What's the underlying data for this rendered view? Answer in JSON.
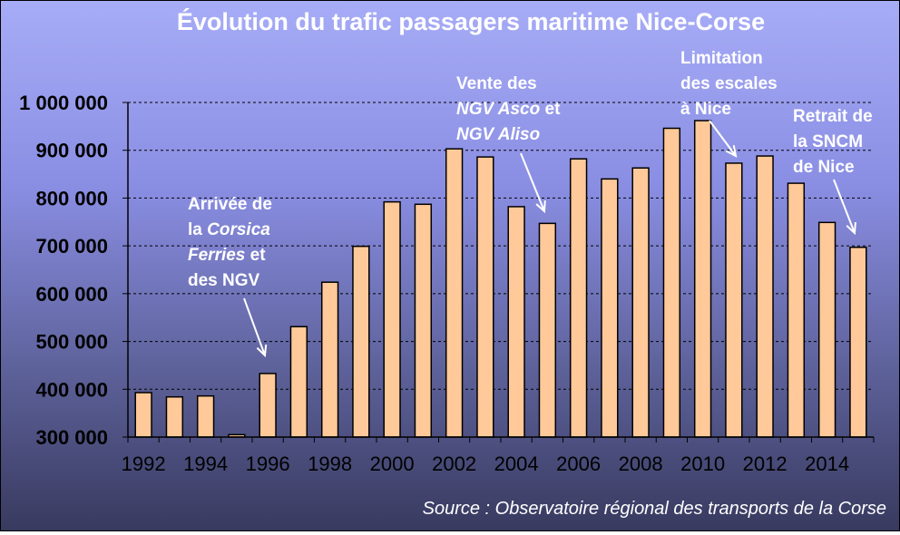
{
  "chart_data": {
    "type": "bar",
    "title": "Évolution du trafic passagers maritime Nice-Corse",
    "xlabel": "",
    "ylabel": "",
    "ylim": [
      300000,
      1000000
    ],
    "yticks": [
      "300 000",
      "400 000",
      "500 000",
      "600 000",
      "700 000",
      "800 000",
      "900 000",
      "1 000 000"
    ],
    "x": [
      1992,
      1993,
      1994,
      1995,
      1996,
      1997,
      1998,
      1999,
      2000,
      2001,
      2002,
      2003,
      2004,
      2005,
      2006,
      2007,
      2008,
      2009,
      2010,
      2011,
      2012,
      2013,
      2014,
      2015
    ],
    "xtick_labels": [
      "1992",
      "1994",
      "1996",
      "1998",
      "2000",
      "2002",
      "2004",
      "2006",
      "2008",
      "2010",
      "2012",
      "2014"
    ],
    "values": [
      393000,
      384000,
      386000,
      305000,
      433000,
      531000,
      624000,
      699000,
      792000,
      787000,
      903000,
      886000,
      782000,
      747000,
      882000,
      840000,
      863000,
      946000,
      962000,
      873000,
      888000,
      831000,
      749000,
      697000
    ],
    "bar_color": "#ffc999",
    "grid": "horizontal dashed",
    "annotations": [
      {
        "lines": [
          [
            {
              "t": "Arrivée de",
              "i": false
            }
          ],
          [
            {
              "t": "la ",
              "i": false
            },
            {
              "t": "Corsica",
              "i": true
            }
          ],
          [
            {
              "t": "Ferries",
              "i": true
            },
            {
              "t": " et",
              "i": false
            }
          ],
          [
            {
              "t": "des NGV",
              "i": false
            }
          ]
        ],
        "year": 1996
      },
      {
        "lines": [
          [
            {
              "t": "Vente des",
              "i": false
            }
          ],
          [
            {
              "t": "NGV Asco",
              "i": true
            },
            {
              "t": " et",
              "i": false
            }
          ],
          [
            {
              "t": "NGV Aliso",
              "i": true
            }
          ]
        ],
        "year": 2005
      },
      {
        "lines": [
          [
            {
              "t": "Limitation",
              "i": false
            }
          ],
          [
            {
              "t": "des escales",
              "i": false
            }
          ],
          [
            {
              "t": "à Nice",
              "i": false
            }
          ]
        ],
        "year": 2011
      },
      {
        "lines": [
          [
            {
              "t": "Retrait de",
              "i": false
            }
          ],
          [
            {
              "t": "la SNCM",
              "i": false
            }
          ],
          [
            {
              "t": "de Nice",
              "i": false
            }
          ]
        ],
        "year": 2015
      }
    ],
    "source": "Source : Observatoire régional des transports de la Corse"
  }
}
